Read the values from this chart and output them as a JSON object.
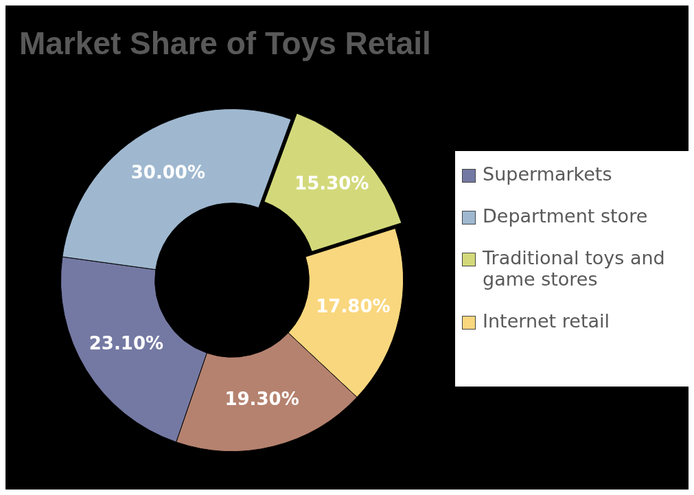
{
  "chart_data": {
    "type": "donut",
    "title": "Market Share of Toys Retail",
    "categories": [
      "Supermarkets",
      "Department store",
      "Traditional toys and game stores",
      "Internet retail",
      null
    ],
    "values": [
      23.1,
      30.0,
      15.3,
      17.8,
      19.3
    ],
    "colors": [
      "#7479a3",
      "#9fb8d0",
      "#d3d97a",
      "#f9d77e",
      "#b5826f"
    ],
    "value_labels": [
      "23.10%",
      "30.00%",
      "15.30%",
      "17.80%",
      "19.30%"
    ],
    "legend": "right"
  }
}
